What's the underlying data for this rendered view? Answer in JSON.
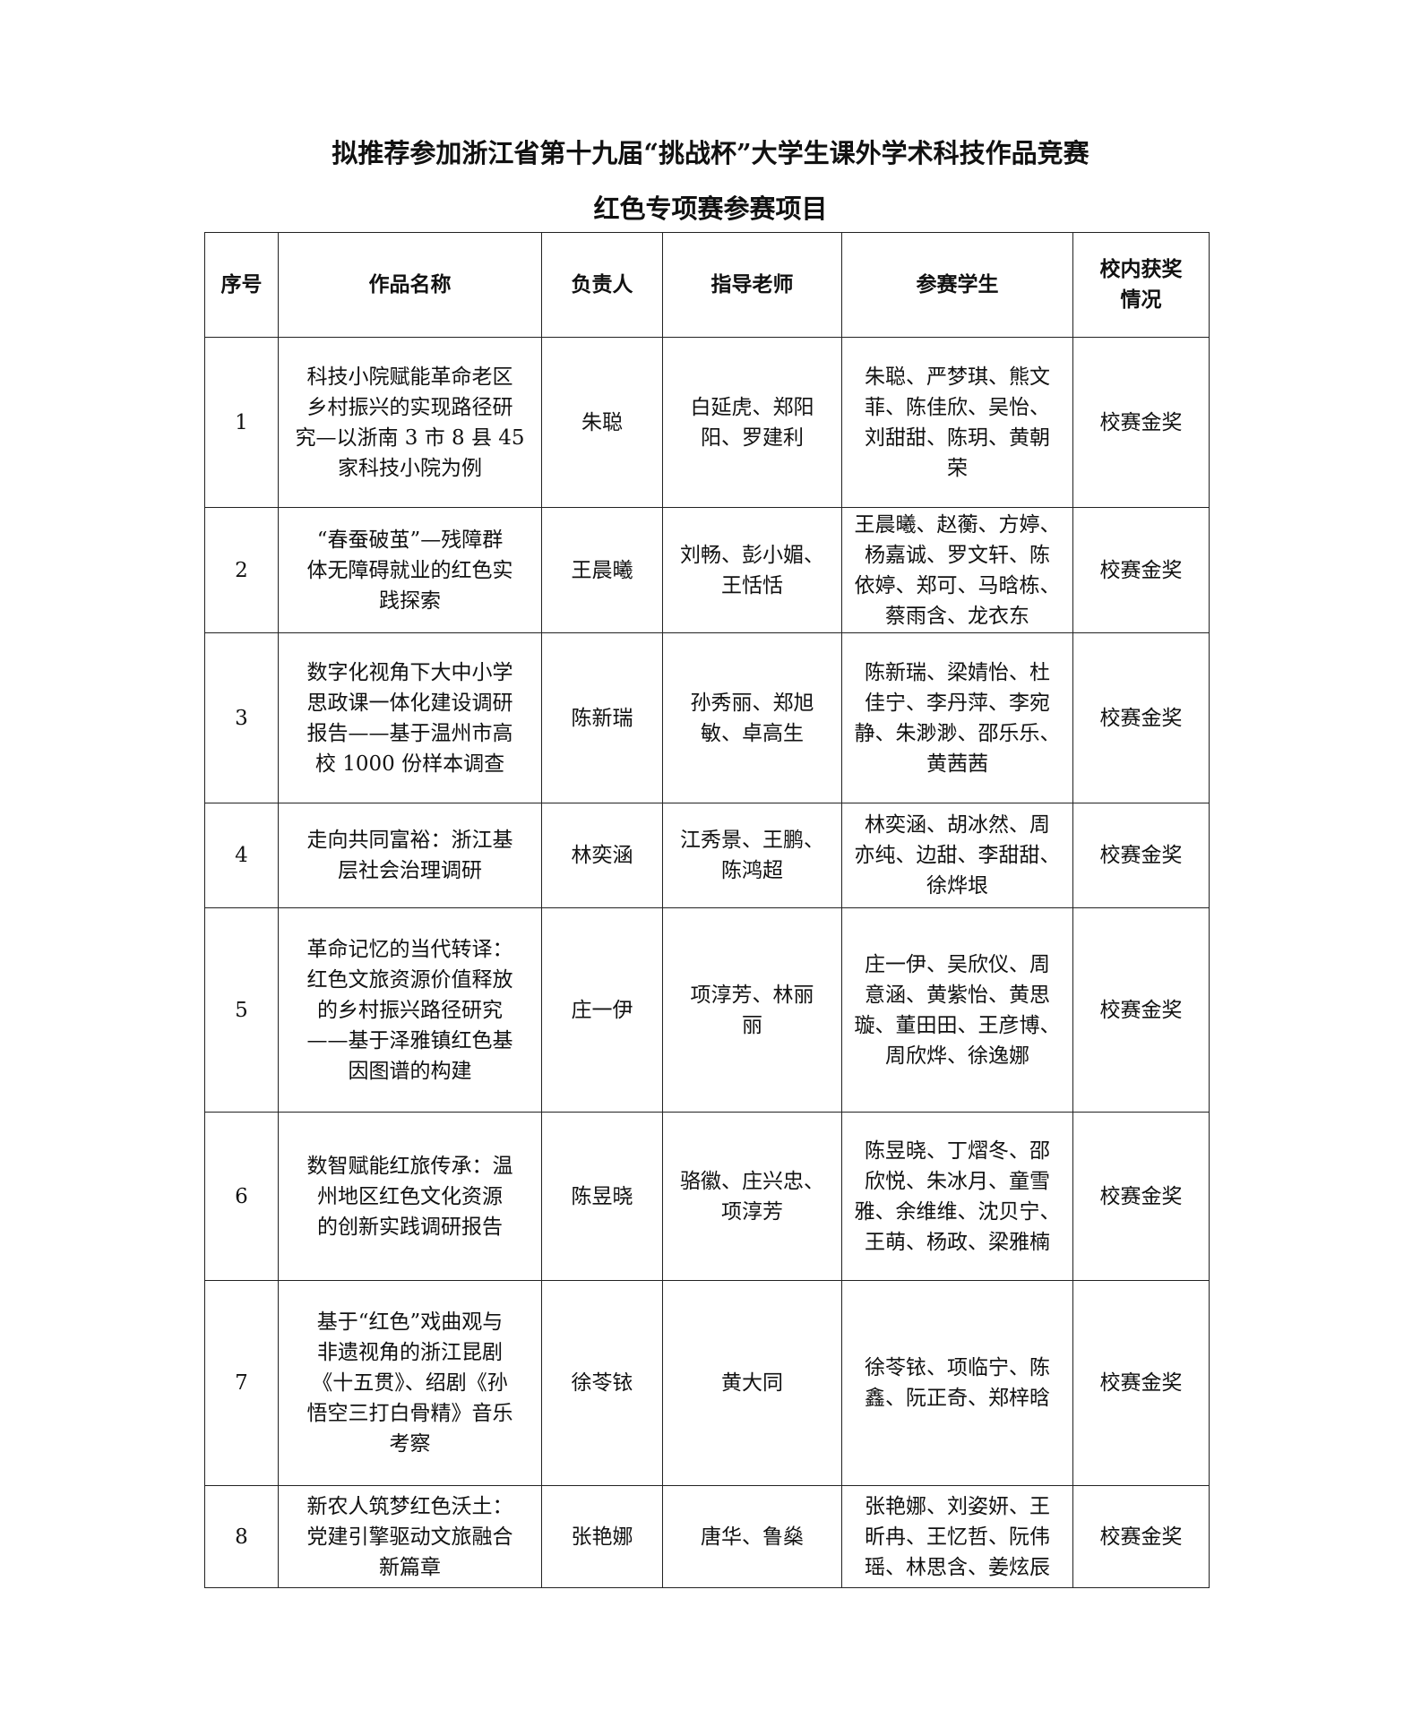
{
  "title_line1": "拟推荐参加浙江省第十九届“挑战杯”大学生课外学术科技作品竞赛",
  "title_line2": "红色专项赛参赛项目",
  "headers": [
    "序号",
    "作品名称",
    "负责人",
    "指导老师",
    "参赛学生",
    [
      "校内获奖",
      "情况"
    ]
  ],
  "rows": [
    {
      "no": "1",
      "title": [
        "科技小院赋能革命老区",
        "乡村振兴的实现路径研",
        "究—以浙南 3 市 8 县 45",
        "家科技小院为例"
      ],
      "leader": [
        "朱聪"
      ],
      "advisors": [
        "白延虎、郑阳",
        "阳、罗建利"
      ],
      "students": [
        "朱聪、严梦琪、熊文",
        "菲、陈佳欣、吴怡、",
        "刘甜甜、陈玥、黄朝",
        "荣"
      ],
      "award": [
        "校赛金奖"
      ]
    },
    {
      "no": "2",
      "title": [
        "“春蚕破茧”—残障群",
        "体无障碍就业的红色实",
        "践探索"
      ],
      "leader": [
        "王晨曦"
      ],
      "advisors": [
        "刘畅、彭小媚、",
        "王恬恬"
      ],
      "students": [
        "王晨曦、赵蘅、方婷、",
        "杨嘉诚、罗文轩、陈",
        "依婷、郑可、马晗栋、",
        "蔡雨含、龙衣东"
      ],
      "award": [
        "校赛金奖"
      ]
    },
    {
      "no": "3",
      "title": [
        "数字化视角下大中小学",
        "思政课一体化建设调研",
        "报告——基于温州市高",
        "校 1000 份样本调查"
      ],
      "leader": [
        "陈新瑞"
      ],
      "advisors": [
        "孙秀丽、郑旭",
        "敏、卓高生"
      ],
      "students": [
        "陈新瑞、梁婧怡、杜",
        "佳宁、李丹萍、李宛",
        "静、朱渺渺、邵乐乐、",
        "黄茜茜"
      ],
      "award": [
        "校赛金奖"
      ]
    },
    {
      "no": "4",
      "title": [
        "走向共同富裕：浙江基",
        "层社会治理调研"
      ],
      "leader": [
        "林奕涵"
      ],
      "advisors": [
        "江秀景、王鹏、",
        "陈鸿超"
      ],
      "students": [
        "林奕涵、胡冰然、周",
        "亦纯、边甜、李甜甜、",
        "徐烨垠"
      ],
      "award": [
        "校赛金奖"
      ]
    },
    {
      "no": "5",
      "title": [
        "革命记忆的当代转译：",
        "红色文旅资源价值释放",
        "的乡村振兴路径研究",
        "——基于泽雅镇红色基",
        "因图谱的构建"
      ],
      "leader": [
        "庄一伊"
      ],
      "advisors": [
        "项淳芳、林丽",
        "丽"
      ],
      "students": [
        "庄一伊、吴欣仪、周",
        "意涵、黄紫怡、黄思",
        "璇、董田田、王彦博、",
        "周欣烨、徐逸娜"
      ],
      "award": [
        "校赛金奖"
      ]
    },
    {
      "no": "6",
      "title": [
        "数智赋能红旅传承：温",
        "州地区红色文化资源",
        "的创新实践调研报告"
      ],
      "leader": [
        "陈昱晓"
      ],
      "advisors": [
        "骆徽、庄兴忠、",
        "项淳芳"
      ],
      "students": [
        "陈昱晓、丁熠冬、邵",
        "欣悦、朱冰月、童雪",
        "雅、余维维、沈贝宁、",
        "王萌、杨政、梁雅楠"
      ],
      "award": [
        "校赛金奖"
      ]
    },
    {
      "no": "7",
      "title": [
        "基于“红色”戏曲观与",
        "非遗视角的浙江昆剧",
        "《十五贯》、绍剧《孙",
        "悟空三打白骨精》音乐",
        "考察"
      ],
      "leader": [
        "徐苓铱"
      ],
      "advisors": [
        "黄大同"
      ],
      "students": [
        "徐苓铱、项临宁、陈",
        "鑫、阮正奇、郑梓晗"
      ],
      "award": [
        "校赛金奖"
      ]
    },
    {
      "no": "8",
      "title": [
        "新农人筑梦红色沃土：",
        "党建引擎驱动文旅融合",
        "新篇章"
      ],
      "leader": [
        "张艳娜"
      ],
      "advisors": [
        "唐华、鲁燊"
      ],
      "students": [
        "张艳娜、刘姿妍、王",
        "昕冉、王忆哲、阮伟",
        "瑶、林思含、姜炫辰"
      ],
      "award": [
        "校赛金奖"
      ]
    }
  ]
}
